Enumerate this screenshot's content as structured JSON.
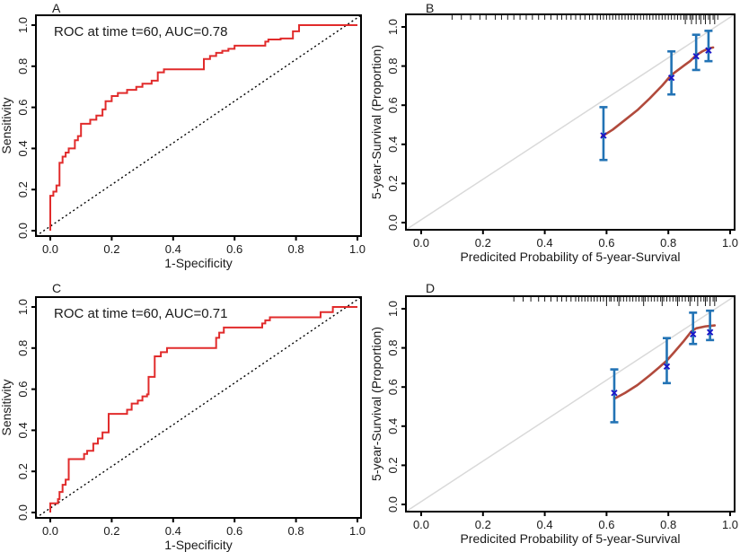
{
  "palette": {
    "background": "#ffffff",
    "axis": "#000000",
    "text": "#1a1a1a",
    "roc_line": "#e12b2b",
    "reference_dotted": "#000000",
    "calibration_line": "#b14a3c",
    "error_bar": "#2273b5",
    "marker": "#1a16c8",
    "reference_gray": "#d9d9d9",
    "rug": "#1a1a1a"
  },
  "chart_data": [
    {
      "panel": "A",
      "type": "line",
      "subtype": "roc_step",
      "title": "ROC at time t=60, AUC=0.78",
      "eval_time": 60,
      "auc": 0.78,
      "xlabel": "1-Specificity",
      "ylabel": "Sensitivity",
      "xlim": [
        0,
        1
      ],
      "ylim": [
        0,
        1
      ],
      "xticks": [
        "0.0",
        "0.2",
        "0.4",
        "0.6",
        "0.8",
        "1.0"
      ],
      "yticks": [
        "0.0",
        "0.2",
        "0.4",
        "0.6",
        "0.8",
        "1.0"
      ],
      "grid": false,
      "legend": "none",
      "diagonal_reference": "dotted black, chance line",
      "roc_points": [
        [
          0,
          0
        ],
        [
          0,
          0.17
        ],
        [
          0.01,
          0.17
        ],
        [
          0.01,
          0.19
        ],
        [
          0.02,
          0.19
        ],
        [
          0.02,
          0.22
        ],
        [
          0.03,
          0.22
        ],
        [
          0.03,
          0.33
        ],
        [
          0.04,
          0.33
        ],
        [
          0.04,
          0.36
        ],
        [
          0.05,
          0.36
        ],
        [
          0.05,
          0.38
        ],
        [
          0.06,
          0.38
        ],
        [
          0.06,
          0.4
        ],
        [
          0.08,
          0.4
        ],
        [
          0.08,
          0.44
        ],
        [
          0.09,
          0.44
        ],
        [
          0.09,
          0.46
        ],
        [
          0.1,
          0.46
        ],
        [
          0.1,
          0.52
        ],
        [
          0.13,
          0.52
        ],
        [
          0.13,
          0.54
        ],
        [
          0.15,
          0.54
        ],
        [
          0.15,
          0.56
        ],
        [
          0.17,
          0.56
        ],
        [
          0.17,
          0.59
        ],
        [
          0.18,
          0.59
        ],
        [
          0.18,
          0.63
        ],
        [
          0.2,
          0.63
        ],
        [
          0.2,
          0.655
        ],
        [
          0.22,
          0.655
        ],
        [
          0.22,
          0.67
        ],
        [
          0.25,
          0.67
        ],
        [
          0.25,
          0.685
        ],
        [
          0.28,
          0.685
        ],
        [
          0.28,
          0.7
        ],
        [
          0.3,
          0.7
        ],
        [
          0.3,
          0.715
        ],
        [
          0.33,
          0.715
        ],
        [
          0.33,
          0.73
        ],
        [
          0.35,
          0.73
        ],
        [
          0.35,
          0.77
        ],
        [
          0.37,
          0.77
        ],
        [
          0.37,
          0.785
        ],
        [
          0.5,
          0.785
        ],
        [
          0.5,
          0.835
        ],
        [
          0.52,
          0.835
        ],
        [
          0.52,
          0.85
        ],
        [
          0.54,
          0.85
        ],
        [
          0.54,
          0.865
        ],
        [
          0.56,
          0.865
        ],
        [
          0.56,
          0.875
        ],
        [
          0.58,
          0.875
        ],
        [
          0.58,
          0.885
        ],
        [
          0.6,
          0.885
        ],
        [
          0.6,
          0.9
        ],
        [
          0.7,
          0.9
        ],
        [
          0.7,
          0.92
        ],
        [
          0.71,
          0.92
        ],
        [
          0.71,
          0.93
        ],
        [
          0.75,
          0.93
        ],
        [
          0.75,
          0.935
        ],
        [
          0.79,
          0.935
        ],
        [
          0.79,
          0.97
        ],
        [
          0.81,
          0.97
        ],
        [
          0.81,
          1
        ],
        [
          1,
          1
        ]
      ]
    },
    {
      "panel": "B",
      "type": "scatter",
      "subtype": "calibration",
      "title": "",
      "xlabel": "Predicited Probability of 5-year-Survival",
      "ylabel": "5-year-Survival (Proportion)",
      "xlim": [
        0,
        1
      ],
      "ylim": [
        0,
        1
      ],
      "xticks": [
        "0.0",
        "0.2",
        "0.4",
        "0.6",
        "0.8",
        "1.0"
      ],
      "yticks": [
        "0.0",
        "0.2",
        "0.4",
        "0.6",
        "0.8",
        "1.0"
      ],
      "grid": false,
      "legend": "none",
      "diagonal_reference": "light gray, perfect calibration line",
      "points": [
        {
          "x": 0.59,
          "y": 0.445,
          "ci_low": 0.32,
          "ci_high": 0.59
        },
        {
          "x": 0.81,
          "y": 0.74,
          "ci_low": 0.655,
          "ci_high": 0.875
        },
        {
          "x": 0.89,
          "y": 0.85,
          "ci_low": 0.78,
          "ci_high": 0.96
        },
        {
          "x": 0.93,
          "y": 0.88,
          "ci_low": 0.825,
          "ci_high": 0.98
        }
      ],
      "smooth_line": [
        [
          0.585,
          0.44
        ],
        [
          0.62,
          0.475
        ],
        [
          0.66,
          0.525
        ],
        [
          0.7,
          0.575
        ],
        [
          0.74,
          0.635
        ],
        [
          0.78,
          0.7
        ],
        [
          0.81,
          0.755
        ],
        [
          0.84,
          0.79
        ],
        [
          0.87,
          0.825
        ],
        [
          0.89,
          0.855
        ],
        [
          0.91,
          0.875
        ],
        [
          0.93,
          0.89
        ],
        [
          0.945,
          0.895
        ]
      ],
      "rug_x": [
        0.1,
        0.13,
        0.16,
        0.19,
        0.21,
        0.24,
        0.26,
        0.28,
        0.3,
        0.32,
        0.34,
        0.36,
        0.38,
        0.4,
        0.42,
        0.44,
        0.455,
        0.47,
        0.485,
        0.5,
        0.515,
        0.53,
        0.545,
        0.555,
        0.57,
        0.58,
        0.59,
        0.6,
        0.61,
        0.62,
        0.63,
        0.64,
        0.65,
        0.66,
        0.67,
        0.68,
        0.69,
        0.7,
        0.71,
        0.72,
        0.73,
        0.74,
        0.75,
        0.76,
        0.77,
        0.78,
        0.79,
        0.8,
        0.81,
        0.82,
        0.83,
        0.84,
        0.85,
        0.86,
        0.87,
        0.88,
        0.89,
        0.9,
        0.915,
        0.93,
        0.945,
        0.96
      ],
      "rug_x_long": [
        0.855,
        0.875,
        0.89,
        0.905,
        0.92,
        0.935,
        0.95
      ]
    },
    {
      "panel": "C",
      "type": "line",
      "subtype": "roc_step",
      "title": "ROC at time t=60, AUC=0.71",
      "eval_time": 60,
      "auc": 0.71,
      "xlabel": "1-Specificity",
      "ylabel": "Sensitivity",
      "xlim": [
        0,
        1
      ],
      "ylim": [
        0,
        1
      ],
      "xticks": [
        "0.0",
        "0.2",
        "0.4",
        "0.6",
        "0.8",
        "1.0"
      ],
      "yticks": [
        "0.0",
        "0.2",
        "0.4",
        "0.6",
        "0.8",
        "1.0"
      ],
      "grid": false,
      "legend": "none",
      "diagonal_reference": "dotted black, chance line",
      "roc_points": [
        [
          0,
          0
        ],
        [
          0,
          0.045
        ],
        [
          0.025,
          0.045
        ],
        [
          0.025,
          0.065
        ],
        [
          0.03,
          0.065
        ],
        [
          0.03,
          0.1
        ],
        [
          0.04,
          0.1
        ],
        [
          0.04,
          0.135
        ],
        [
          0.05,
          0.135
        ],
        [
          0.05,
          0.16
        ],
        [
          0.06,
          0.16
        ],
        [
          0.06,
          0.26
        ],
        [
          0.11,
          0.26
        ],
        [
          0.11,
          0.285
        ],
        [
          0.12,
          0.285
        ],
        [
          0.12,
          0.3
        ],
        [
          0.14,
          0.3
        ],
        [
          0.14,
          0.335
        ],
        [
          0.155,
          0.335
        ],
        [
          0.155,
          0.36
        ],
        [
          0.17,
          0.36
        ],
        [
          0.17,
          0.39
        ],
        [
          0.19,
          0.39
        ],
        [
          0.19,
          0.48
        ],
        [
          0.25,
          0.48
        ],
        [
          0.25,
          0.5
        ],
        [
          0.265,
          0.5
        ],
        [
          0.265,
          0.53
        ],
        [
          0.285,
          0.53
        ],
        [
          0.285,
          0.545
        ],
        [
          0.3,
          0.545
        ],
        [
          0.3,
          0.565
        ],
        [
          0.315,
          0.565
        ],
        [
          0.315,
          0.575
        ],
        [
          0.32,
          0.575
        ],
        [
          0.32,
          0.66
        ],
        [
          0.34,
          0.66
        ],
        [
          0.34,
          0.76
        ],
        [
          0.36,
          0.76
        ],
        [
          0.36,
          0.78
        ],
        [
          0.38,
          0.78
        ],
        [
          0.38,
          0.8
        ],
        [
          0.54,
          0.8
        ],
        [
          0.54,
          0.85
        ],
        [
          0.55,
          0.85
        ],
        [
          0.55,
          0.875
        ],
        [
          0.565,
          0.875
        ],
        [
          0.565,
          0.9
        ],
        [
          0.69,
          0.9
        ],
        [
          0.69,
          0.92
        ],
        [
          0.7,
          0.92
        ],
        [
          0.7,
          0.935
        ],
        [
          0.715,
          0.935
        ],
        [
          0.715,
          0.95
        ],
        [
          0.88,
          0.95
        ],
        [
          0.88,
          0.975
        ],
        [
          0.92,
          0.975
        ],
        [
          0.92,
          1
        ],
        [
          1,
          1
        ]
      ]
    },
    {
      "panel": "D",
      "type": "scatter",
      "subtype": "calibration",
      "title": "",
      "xlabel": "Predicited Probability of 5-year-Survival",
      "ylabel": "5-year-Survival (Proportion)",
      "xlim": [
        0,
        1
      ],
      "ylim": [
        0,
        1
      ],
      "xticks": [
        "0.0",
        "0.2",
        "0.4",
        "0.6",
        "0.8",
        "1.0"
      ],
      "yticks": [
        "0.0",
        "0.2",
        "0.4",
        "0.6",
        "0.8",
        "1.0"
      ],
      "grid": false,
      "legend": "none",
      "diagonal_reference": "light gray, perfect calibration line",
      "points": [
        {
          "x": 0.625,
          "y": 0.57,
          "ci_low": 0.42,
          "ci_high": 0.69
        },
        {
          "x": 0.795,
          "y": 0.705,
          "ci_low": 0.62,
          "ci_high": 0.85
        },
        {
          "x": 0.88,
          "y": 0.87,
          "ci_low": 0.82,
          "ci_high": 0.98
        },
        {
          "x": 0.935,
          "y": 0.88,
          "ci_low": 0.84,
          "ci_high": 0.99
        }
      ],
      "smooth_line": [
        [
          0.625,
          0.54
        ],
        [
          0.66,
          0.57
        ],
        [
          0.7,
          0.61
        ],
        [
          0.74,
          0.66
        ],
        [
          0.77,
          0.7
        ],
        [
          0.795,
          0.735
        ],
        [
          0.82,
          0.78
        ],
        [
          0.85,
          0.835
        ],
        [
          0.875,
          0.885
        ],
        [
          0.89,
          0.9
        ],
        [
          0.92,
          0.91
        ],
        [
          0.95,
          0.915
        ]
      ],
      "rug_x": [
        0.3,
        0.33,
        0.355,
        0.38,
        0.4,
        0.42,
        0.44,
        0.455,
        0.47,
        0.485,
        0.5,
        0.51,
        0.52,
        0.53,
        0.54,
        0.55,
        0.56,
        0.57,
        0.58,
        0.59,
        0.6,
        0.61,
        0.615,
        0.625,
        0.635,
        0.645,
        0.655,
        0.665,
        0.675,
        0.685,
        0.695,
        0.705,
        0.715,
        0.725,
        0.735,
        0.745,
        0.755,
        0.765,
        0.775,
        0.785,
        0.795,
        0.805,
        0.815,
        0.825,
        0.835,
        0.845,
        0.855,
        0.865,
        0.875,
        0.885,
        0.895,
        0.905,
        0.915,
        0.925,
        0.935,
        0.945,
        0.955
      ],
      "rug_x_long": [
        0.6,
        0.64,
        0.72,
        0.78,
        0.83,
        0.87,
        0.895,
        0.92,
        0.935,
        0.95
      ]
    }
  ]
}
